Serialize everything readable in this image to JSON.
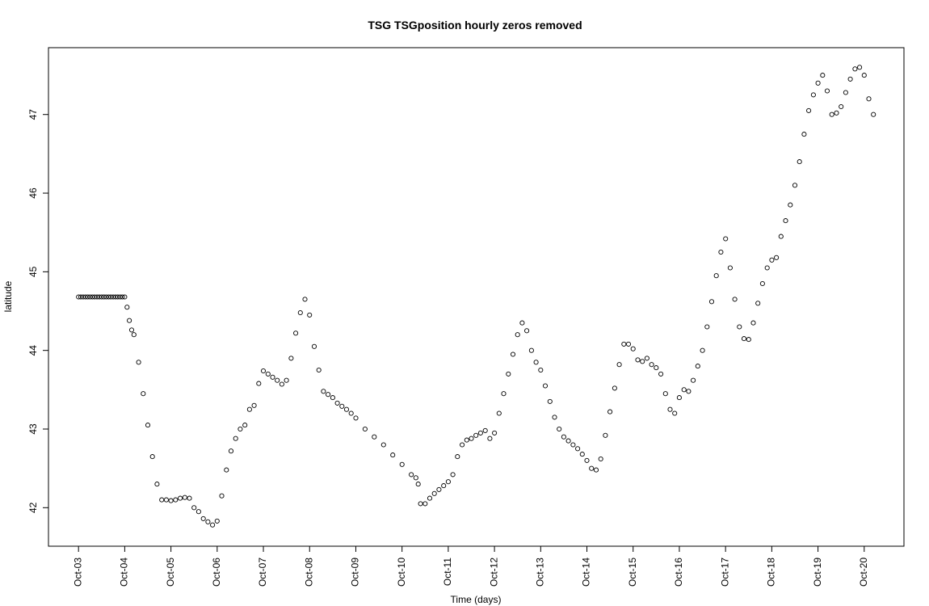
{
  "chart_data": {
    "type": "scatter",
    "title": "TSG TSGposition hourly zeros removed",
    "xlabel": "Time (days)",
    "ylabel": "latitude",
    "x_unit": "days",
    "x_tick_labels": [
      "Oct-03",
      "Oct-04",
      "Oct-05",
      "Oct-06",
      "Oct-07",
      "Oct-08",
      "Oct-09",
      "Oct-10",
      "Oct-11",
      "Oct-12",
      "Oct-13",
      "Oct-14",
      "Oct-15",
      "Oct-16",
      "Oct-17",
      "Oct-18",
      "Oct-19",
      "Oct-20"
    ],
    "x_tick_values": [
      3,
      4,
      5,
      6,
      7,
      8,
      9,
      10,
      11,
      12,
      13,
      14,
      15,
      16,
      17,
      18,
      19,
      20
    ],
    "y_ticks": [
      42,
      43,
      44,
      45,
      46,
      47
    ],
    "xlim": [
      2.35,
      20.86
    ],
    "ylim": [
      41.51,
      47.85
    ],
    "grid": false,
    "legend": "none",
    "marker": "open-circle",
    "series": [
      {
        "x": [
          3.0,
          3.05,
          3.1,
          3.15,
          3.2,
          3.25,
          3.3,
          3.35,
          3.4,
          3.45,
          3.5,
          3.55,
          3.6,
          3.65,
          3.7,
          3.75,
          3.8,
          3.85,
          3.9,
          3.95,
          4.0,
          4.05,
          4.1,
          4.15,
          4.2,
          4.3,
          4.4,
          4.5,
          4.6,
          4.7,
          4.8,
          4.9,
          5.0,
          5.1,
          5.2,
          5.3,
          5.4,
          5.5,
          5.6,
          5.7,
          5.8,
          5.9,
          6.0,
          6.1,
          6.2,
          6.3,
          6.4,
          6.5,
          6.6,
          6.7,
          6.8,
          6.9,
          7.0,
          7.1,
          7.2,
          7.3,
          7.4,
          7.5,
          7.6,
          7.7,
          7.8,
          7.9,
          8.0,
          8.1,
          8.2,
          8.3,
          8.4,
          8.5,
          8.6,
          8.7,
          8.8,
          8.9,
          9.0,
          9.2,
          9.4,
          9.6,
          9.8,
          10.0,
          10.2,
          10.3,
          10.35,
          10.4,
          10.5,
          10.6,
          10.7,
          10.8,
          10.9,
          11.0,
          11.1,
          11.2,
          11.3,
          11.4,
          11.5,
          11.6,
          11.7,
          11.8,
          11.9,
          12.0,
          12.1,
          12.2,
          12.3,
          12.4,
          12.5,
          12.6,
          12.7,
          12.8,
          12.9,
          13.0,
          13.1,
          13.2,
          13.3,
          13.4,
          13.5,
          13.6,
          13.7,
          13.8,
          13.9,
          14.0,
          14.1,
          14.2,
          14.3,
          14.4,
          14.5,
          14.6,
          14.7,
          14.8,
          14.9,
          15.0,
          15.1,
          15.2,
          15.3,
          15.4,
          15.5,
          15.6,
          15.7,
          15.8,
          15.9,
          16.0,
          16.1,
          16.2,
          16.3,
          16.4,
          16.5,
          16.6,
          16.7,
          16.8,
          16.9,
          17.0,
          17.1,
          17.2,
          17.3,
          17.4,
          17.5,
          17.6,
          17.7,
          17.8,
          17.9,
          18.0,
          18.1,
          18.2,
          18.3,
          18.4,
          18.5,
          18.6,
          18.7,
          18.8,
          18.9,
          19.0,
          19.1,
          19.2,
          19.3,
          19.4,
          19.5,
          19.6,
          19.7,
          19.8,
          19.9,
          20.0,
          20.1,
          20.2
        ],
        "values": [
          44.68,
          44.68,
          44.68,
          44.68,
          44.68,
          44.68,
          44.68,
          44.68,
          44.68,
          44.68,
          44.68,
          44.68,
          44.68,
          44.68,
          44.68,
          44.68,
          44.68,
          44.68,
          44.68,
          44.68,
          44.68,
          44.55,
          44.38,
          44.26,
          44.2,
          43.85,
          43.45,
          43.05,
          42.65,
          42.3,
          42.1,
          42.1,
          42.09,
          42.1,
          42.12,
          42.13,
          42.12,
          42.0,
          41.95,
          41.86,
          41.82,
          41.78,
          41.83,
          42.15,
          42.48,
          42.72,
          42.88,
          43.0,
          43.05,
          43.25,
          43.3,
          43.58,
          43.74,
          43.7,
          43.66,
          43.62,
          43.57,
          43.62,
          43.9,
          44.22,
          44.48,
          44.65,
          44.45,
          44.05,
          43.75,
          43.48,
          43.44,
          43.4,
          43.33,
          43.29,
          43.25,
          43.2,
          43.14,
          43.0,
          42.9,
          42.8,
          42.67,
          42.55,
          42.42,
          42.38,
          42.3,
          42.05,
          42.05,
          42.12,
          42.18,
          42.23,
          42.28,
          42.33,
          42.42,
          42.65,
          42.8,
          42.86,
          42.88,
          42.92,
          42.95,
          42.98,
          42.88,
          42.95,
          43.2,
          43.45,
          43.7,
          43.95,
          44.2,
          44.35,
          44.25,
          44.0,
          43.85,
          43.75,
          43.55,
          43.35,
          43.15,
          43.0,
          42.9,
          42.85,
          42.8,
          42.75,
          42.68,
          42.6,
          42.5,
          42.48,
          42.62,
          42.92,
          43.22,
          43.52,
          43.82,
          44.08,
          44.08,
          44.02,
          43.88,
          43.86,
          43.9,
          43.82,
          43.78,
          43.7,
          43.45,
          43.25,
          43.2,
          43.4,
          43.5,
          43.48,
          43.62,
          43.8,
          44.0,
          44.3,
          44.62,
          44.95,
          45.25,
          45.42,
          45.05,
          44.65,
          44.3,
          44.15,
          44.14,
          44.35,
          44.6,
          44.85,
          45.05,
          45.15,
          45.18,
          45.45,
          45.65,
          45.85,
          46.1,
          46.4,
          46.75,
          47.05,
          47.25,
          47.4,
          47.5,
          47.3,
          47.0,
          47.02,
          47.1,
          47.28,
          47.45,
          47.58,
          47.6,
          47.5,
          47.2,
          47.0
        ]
      }
    ]
  }
}
